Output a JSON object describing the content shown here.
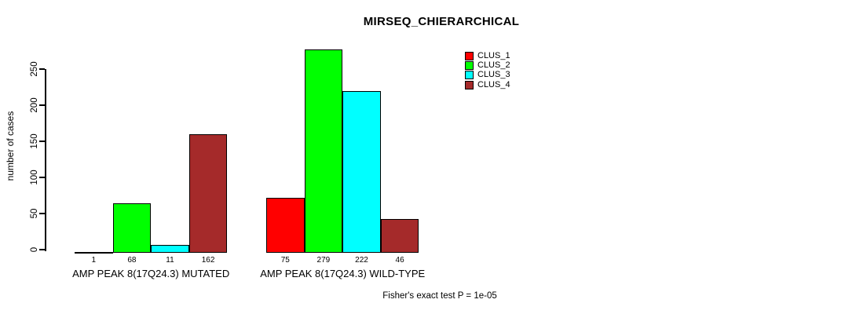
{
  "title": "MIRSEQ_CHIERARCHICAL",
  "ylabel": "number of cases",
  "footer": "Fisher's exact test P = 1e-05",
  "chart_data": {
    "type": "bar",
    "title": "MIRSEQ_CHIERARCHICAL",
    "xlabel": "",
    "ylabel": "number of cases",
    "categories": [
      "AMP PEAK 8(17Q24.3) MUTATED",
      "AMP PEAK 8(17Q24.3) WILD-TYPE"
    ],
    "series": [
      {
        "name": "CLUS_1",
        "color": "#FF0000",
        "values": [
          1,
          75
        ]
      },
      {
        "name": "CLUS_2",
        "color": "#00FF00",
        "values": [
          68,
          279
        ]
      },
      {
        "name": "CLUS_3",
        "color": "#00FFFF",
        "values": [
          11,
          222
        ]
      },
      {
        "name": "CLUS_4",
        "color": "#A52A2A",
        "values": [
          162,
          46
        ]
      }
    ],
    "bar_value_labels": [
      [
        "1",
        "68",
        "11",
        "162"
      ],
      [
        "75",
        "279",
        "222",
        "46"
      ]
    ],
    "yticks": [
      0,
      50,
      100,
      150,
      200,
      250
    ],
    "ylim": [
      0,
      290
    ],
    "grid": false,
    "legend_position": "top-right",
    "legend_entries": [
      "CLUS_1",
      "CLUS_2",
      "CLUS_3",
      "CLUS_4"
    ],
    "annotation": "Fisher's exact test P = 1e-05",
    "bar_border_color": "#000000",
    "background_color": "#FFFFFF"
  }
}
